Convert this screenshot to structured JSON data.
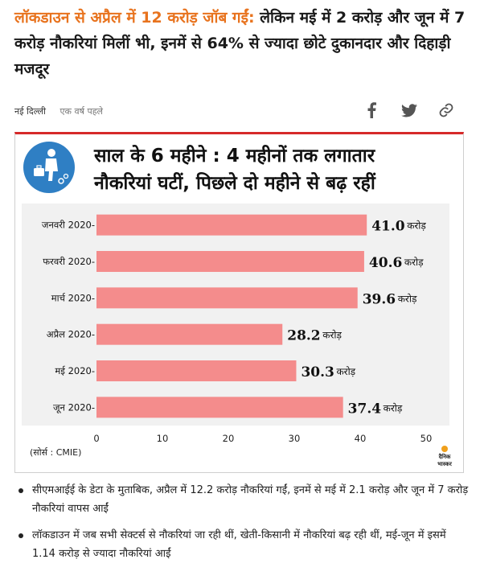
{
  "article": {
    "headline_highlight": "लॉकडाउन से अप्रैल में 12 करोड़ जॉब गईं:",
    "headline_rest": " लेकिन मई में 2 करोड़ और जून में 7 करोड़ नौकरियां मिलीं भी, इनमें से 64% से ज्यादा छोटे दुकानदार और दिहाड़ी मजदूर",
    "location": "नई दिल्ली",
    "time": "एक वर्ष पहले"
  },
  "share": {
    "icons": [
      "facebook-icon",
      "twitter-icon",
      "link-icon"
    ]
  },
  "figure": {
    "title_line1": "साल के 6 महीने : 4 महीनों तक लगातार",
    "title_line2": "नौकरियां घटीं, पिछले दो महीने से बढ़ रहीं",
    "source": "(सोर्स : CMIE)",
    "brand_line1": "दैनिक",
    "brand_line2": "भास्कर"
  },
  "chart_data": {
    "type": "bar",
    "orientation": "horizontal",
    "categories": [
      "जनवरी 2020-",
      "फरवरी 2020-",
      "मार्च 2020-",
      "अप्रैल 2020-",
      "मई 2020-",
      "जून 2020-"
    ],
    "values": [
      41.0,
      40.6,
      39.6,
      28.2,
      30.3,
      37.4
    ],
    "value_labels": [
      "41.0",
      "40.6",
      "39.6",
      "28.2",
      "30.3",
      "37.4"
    ],
    "value_unit": "करोड़",
    "xlim": [
      0,
      50
    ],
    "x_ticks": [
      "0",
      "10",
      "20",
      "30",
      "40",
      "50"
    ],
    "bar_color": "#f48c8c",
    "panel_color": "#f1f1f1"
  },
  "bullets": [
    "सीएमआईई के डेटा के मुताबिक, अप्रैल में 12.2 करोड़ नौकरियां गईं, इनमें से मई में 2.1 करोड़ और जून में 7 करोड़ नौकरियां वापस आईं",
    "लॉकडाउन में जब सभी सेक्टर्स से नौकरियां जा रही थीं, खेती-किसानी में नौकरियां बढ़ रही थीं, मई-जून में इसमें 1.14 करोड़ से ज्यादा नौकरियां आईं"
  ]
}
